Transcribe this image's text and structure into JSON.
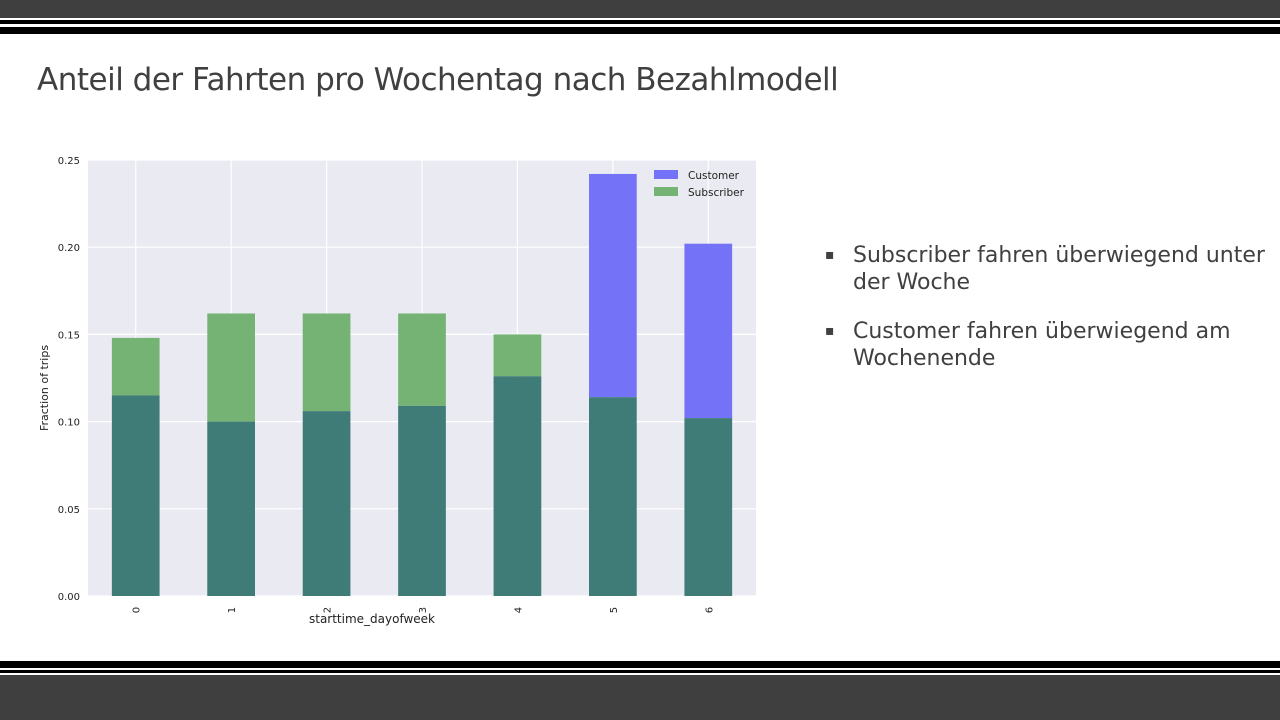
{
  "slide": {
    "title": "Anteil der Fahrten pro Wochentag nach Bezahlmodell",
    "bullets": [
      {
        "marker": "▪",
        "text": "Subscriber fahren überwiegend unter der Woche"
      },
      {
        "marker": "▪",
        "text": "Customer fahren überwiegend am Wochenende"
      }
    ]
  },
  "chart_data": {
    "type": "bar",
    "xlabel": "starttime_dayofweek",
    "ylabel": "Fraction of trips",
    "categories": [
      "0",
      "1",
      "2",
      "3",
      "4",
      "5",
      "6"
    ],
    "ylim": [
      0,
      0.25
    ],
    "yticks": [
      "0.00",
      "0.05",
      "0.10",
      "0.15",
      "0.20",
      "0.25"
    ],
    "grid": true,
    "legend_position": "top-right",
    "series": [
      {
        "name": "Customer",
        "color": "#7472f6",
        "values": [
          0.115,
          0.1,
          0.106,
          0.109,
          0.126,
          0.242,
          0.202
        ]
      },
      {
        "name": "Subscriber",
        "color": "#74b374",
        "values": [
          0.148,
          0.162,
          0.162,
          0.162,
          0.15,
          0.114,
          0.102
        ]
      }
    ],
    "overlap_color": "#3f7b77"
  }
}
